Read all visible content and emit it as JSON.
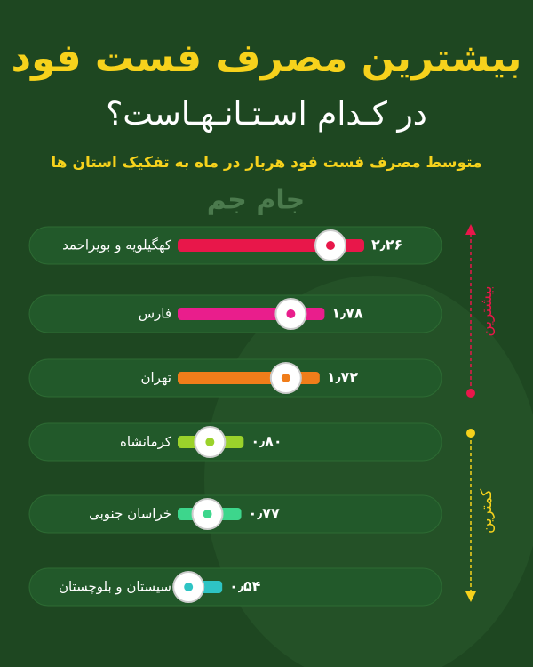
{
  "chart_data": {
    "type": "bar",
    "orientation": "horizontal",
    "title": "بیشترین مصرف فست فود",
    "subtitle": "در کـدام اسـتـانـهـاست؟",
    "caption": "متوسط مصرف فست فود هربار در ماه به تفکیک استان ها",
    "logo": "جام جم",
    "categories": [
      "کهگیلویه و بویراحمد",
      "فارس",
      "تهران",
      "کرمانشاه",
      "خراسان جنوبی",
      "سیستان و بلوچستان"
    ],
    "values": [
      2.26,
      1.78,
      1.72,
      0.8,
      0.77,
      0.54
    ],
    "value_labels": [
      "۲٫۲۶",
      "۱٫۷۸",
      "۱٫۷۲",
      "۰٫۸۰",
      "۰٫۷۷",
      "۰٫۵۴"
    ],
    "colors": [
      "#e8174a",
      "#e91e8c",
      "#f07d1a",
      "#9bd22b",
      "#3dd68c",
      "#2ec4c4"
    ],
    "side_labels": [
      "بیشترین",
      "کمترین"
    ]
  }
}
